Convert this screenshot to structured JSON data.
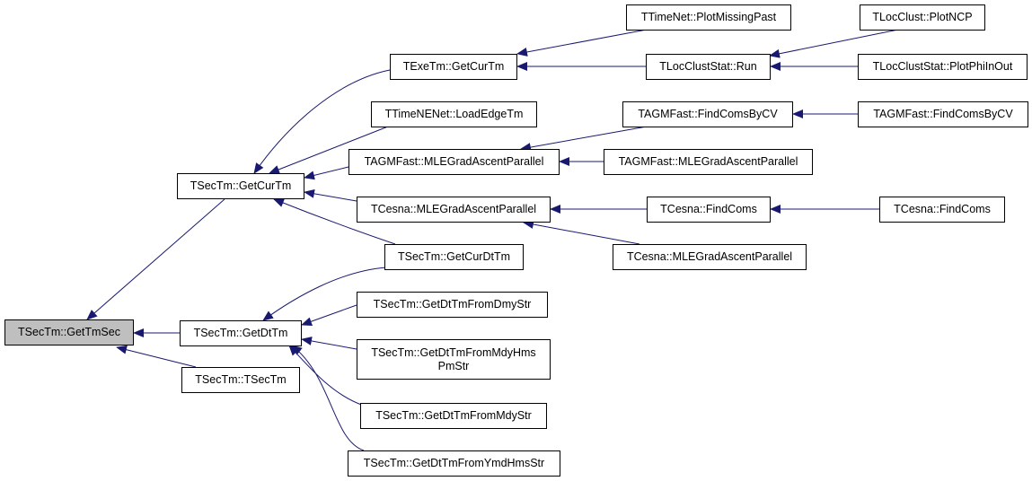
{
  "colors": {
    "edge": "#191970",
    "root_fill": "#bfbfbf",
    "node_border": "#000000"
  },
  "nodes": {
    "root": "TSecTm::GetTmSec",
    "getcurtm": "TSecTm::GetCurTm",
    "getdttm": "TSecTm::GetDtTm",
    "tsectm": "TSecTm::TSecTm",
    "exe_getcurtm": "TExeTm::GetCurTm",
    "loadedgetm": "TTimeNENet::LoadEdgeTm",
    "agm_mle": "TAGMFast::MLEGradAscentParallel",
    "cesna_mle": "TCesna::MLEGradAscentParallel",
    "getcurdttm": "TSecTm::GetCurDtTm",
    "dmystr": "TSecTm::GetDtTmFromDmyStr",
    "mdyhmspm_1": "TSecTm::GetDtTmFromMdyHms",
    "mdyhmspm_2": "PmStr",
    "mdystr": "TSecTm::GetDtTmFromMdyStr",
    "ymdhms": "TSecTm::GetDtTmFromYmdHmsStr",
    "plotmissingpast": "TTimeNet::PlotMissingPast",
    "locclust_run": "TLocClustStat::Run",
    "agm_findcoms_1": "TAGMFast::FindComsByCV",
    "agm_mle_2": "TAGMFast::MLEGradAscentParallel",
    "cesna_findcoms_1": "TCesna::FindComs",
    "cesna_mle_2": "TCesna::MLEGradAscentParallel",
    "plotncp": "TLocClust::PlotNCP",
    "plotphiinout": "TLocClustStat::PlotPhiInOut",
    "agm_findcoms_2": "TAGMFast::FindComsByCV",
    "cesna_findcoms_2": "TCesna::FindComs"
  }
}
